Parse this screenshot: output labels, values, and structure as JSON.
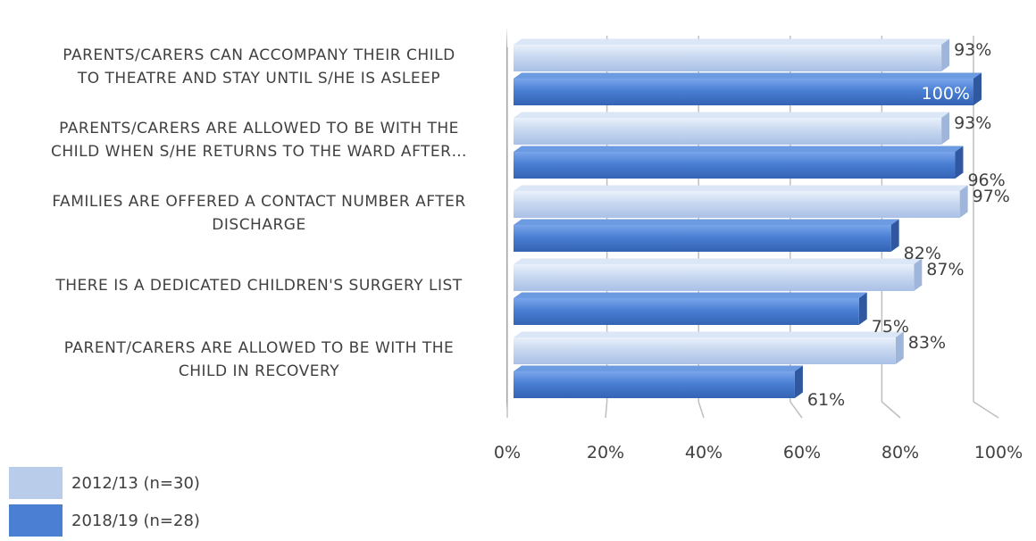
{
  "chart_data": {
    "type": "bar",
    "orientation": "horizontal",
    "categories": [
      [
        "PARENTS/CARERS CAN ACCOMPANY THEIR CHILD",
        "TO THEATRE AND STAY UNTIL S/HE IS ASLEEP"
      ],
      [
        "PARENTS/CARERS ARE ALLOWED TO BE WITH THE",
        "CHILD WHEN S/HE RETURNS TO THE WARD AFTER…"
      ],
      [
        "FAMILIES ARE OFFERED A CONTACT NUMBER AFTER",
        "DISCHARGE"
      ],
      [
        "THERE IS A DEDICATED CHILDREN'S SURGERY LIST"
      ],
      [
        "PARENT/CARERS ARE ALLOWED TO BE WITH THE",
        "CHILD IN RECOVERY"
      ]
    ],
    "series": [
      {
        "name": "2012/13 (n=30)",
        "color": "#b9cdeb",
        "values": [
          93,
          93,
          97,
          87,
          83
        ],
        "labels": [
          "93%",
          "93%",
          "97%",
          "87%",
          "83%"
        ]
      },
      {
        "name": "2018/19 (n=28)",
        "color": "#4a7fd4",
        "values": [
          100,
          96,
          82,
          75,
          61
        ],
        "labels": [
          "100%",
          "96%",
          "82%",
          "75%",
          "61%"
        ]
      }
    ],
    "xlim": [
      0,
      100
    ],
    "xticks": [
      "0%",
      "20%",
      "40%",
      "60%",
      "80%",
      "100%"
    ],
    "grid": true,
    "legend": "bottom-left",
    "style": "3d"
  }
}
